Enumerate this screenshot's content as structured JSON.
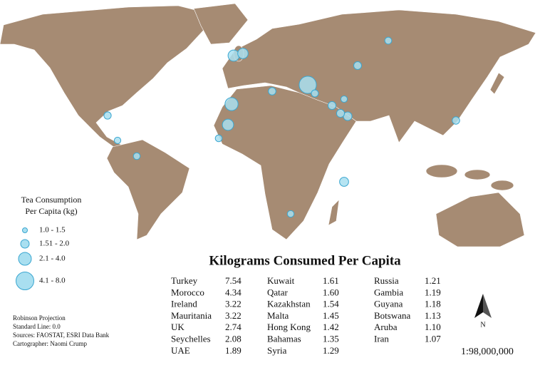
{
  "legend": {
    "title_lines": [
      "Tea Consumption",
      "Per Capita (kg)"
    ],
    "items": [
      "1.0 - 1.5",
      "1.51 - 2.0",
      "2.1 - 4.0",
      "4.1 - 8.0"
    ]
  },
  "notes": [
    "Robinson Projection",
    "Standard Line: 0.0",
    "Sources: FAOSTAT, ESRI Data Bank",
    "Cartographer: Naomi Crump"
  ],
  "table": {
    "title": "Kilograms Consumed Per Capita",
    "columns": [
      [
        {
          "country": "Turkey",
          "value": 7.54,
          "label": "7.54"
        },
        {
          "country": "Morocco",
          "value": 4.34,
          "label": "4.34"
        },
        {
          "country": "Ireland",
          "value": 3.22,
          "label": "3.22"
        },
        {
          "country": "Mauritania",
          "value": 3.22,
          "label": "3.22"
        },
        {
          "country": "UK",
          "value": 2.74,
          "label": "2.74"
        },
        {
          "country": "Seychelles",
          "value": 2.08,
          "label": "2.08"
        },
        {
          "country": "UAE",
          "value": 1.89,
          "label": "1.89"
        }
      ],
      [
        {
          "country": "Kuwait",
          "value": 1.61,
          "label": "1.61"
        },
        {
          "country": "Qatar",
          "value": 1.6,
          "label": "1.60"
        },
        {
          "country": "Kazakhstan",
          "value": 1.54,
          "label": "1.54"
        },
        {
          "country": "Malta",
          "value": 1.45,
          "label": "1.45"
        },
        {
          "country": "Hong Kong",
          "value": 1.42,
          "label": "1.42"
        },
        {
          "country": "Bahamas",
          "value": 1.35,
          "label": "1.35"
        },
        {
          "country": "Syria",
          "value": 1.29,
          "label": "1.29"
        }
      ],
      [
        {
          "country": "Russia",
          "value": 1.21,
          "label": "1.21"
        },
        {
          "country": "Gambia",
          "value": 1.19,
          "label": "1.19"
        },
        {
          "country": "Guyana",
          "value": 1.18,
          "label": "1.18"
        },
        {
          "country": "Botswana",
          "value": 1.13,
          "label": "1.13"
        },
        {
          "country": "Aruba",
          "value": 1.1,
          "label": "1.10"
        },
        {
          "country": "Iran",
          "value": 1.07,
          "label": "1.07"
        }
      ]
    ]
  },
  "north": "N",
  "scale": "1:98,000,000"
}
